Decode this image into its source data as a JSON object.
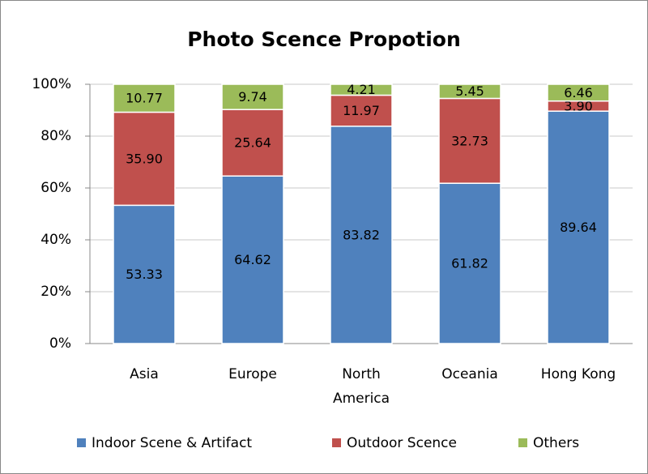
{
  "chart_data": {
    "type": "stacked_bar",
    "title": "Photo Scence Propotion",
    "categories": [
      "Asia",
      "Europe",
      "North America",
      "Oceania",
      "Hong Kong"
    ],
    "series": [
      {
        "name": "Indoor Scene & Artifact",
        "color": "#4f81bd",
        "values": [
          53.33,
          64.62,
          83.82,
          61.82,
          89.64
        ],
        "value_labels": [
          "53.33",
          "64.62",
          "83.82",
          "61.82",
          "89.64"
        ]
      },
      {
        "name": "Outdoor Scence",
        "color": "#c0504d",
        "values": [
          35.9,
          25.64,
          11.97,
          32.73,
          3.9
        ],
        "value_labels": [
          "35.90",
          "25.64",
          "11.97",
          "32.73",
          "3.90"
        ]
      },
      {
        "name": "Others",
        "color": "#9bbb59",
        "values": [
          10.77,
          9.74,
          4.21,
          5.45,
          6.46
        ],
        "value_labels": [
          "10.77",
          "9.74",
          "4.21",
          "5.45",
          "6.46"
        ]
      }
    ],
    "ylim": [
      0,
      100
    ],
    "yticks": [
      {
        "value": 0,
        "label": "0%"
      },
      {
        "value": 20,
        "label": "20%"
      },
      {
        "value": 40,
        "label": "40%"
      },
      {
        "value": 60,
        "label": "60%"
      },
      {
        "value": 80,
        "label": "80%"
      },
      {
        "value": 100,
        "label": "100%"
      }
    ],
    "grid": true,
    "legend": "bottom"
  }
}
